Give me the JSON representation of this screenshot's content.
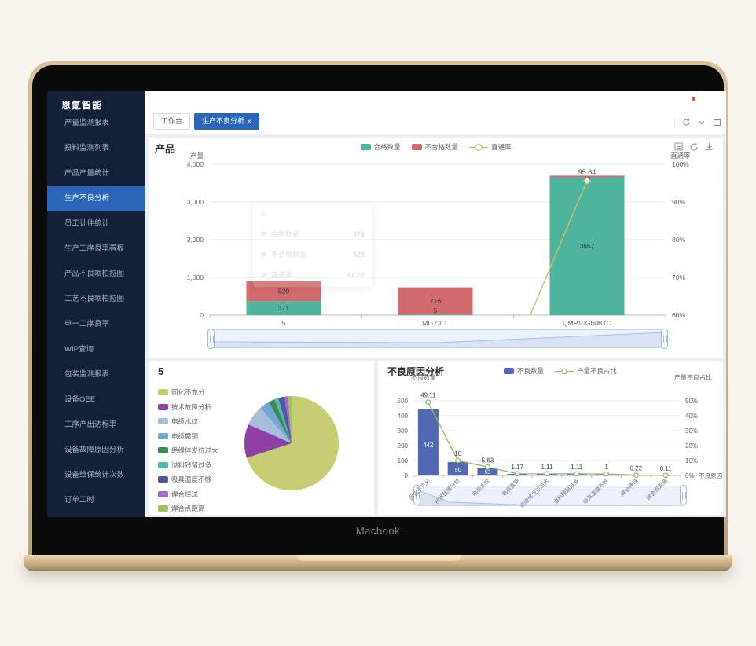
{
  "laptop": {
    "label": "Macbook"
  },
  "sidebar": {
    "brand": "恩氪智能",
    "items": [
      {
        "label": "产量监测报表",
        "active": false
      },
      {
        "label": "投料监测列表",
        "active": false
      },
      {
        "label": "产品产量统计",
        "active": false
      },
      {
        "label": "生产不良分析",
        "active": true
      },
      {
        "label": "员工计件统计",
        "active": false
      },
      {
        "label": "生产工序良率看板",
        "active": false
      },
      {
        "label": "产品不良项柏拉图",
        "active": false
      },
      {
        "label": "工艺不良项柏拉图",
        "active": false
      },
      {
        "label": "单一工序良率",
        "active": false
      },
      {
        "label": "WIP查询",
        "active": false
      },
      {
        "label": "包装监测报表",
        "active": false
      },
      {
        "label": "设备OEE",
        "active": false
      },
      {
        "label": "工序产出达标率",
        "active": false
      },
      {
        "label": "设备故障原因分析",
        "active": false
      },
      {
        "label": "设备维保统计次数",
        "active": false
      },
      {
        "label": "订单工时",
        "active": false
      }
    ]
  },
  "header": {
    "icons": [
      "notification-dot",
      "user-avatar"
    ],
    "notification_color": "#d9534f"
  },
  "tabbar": {
    "tabs": [
      {
        "label": "工作台",
        "active": false,
        "close": ""
      },
      {
        "label": "生产不良分析",
        "active": true,
        "close": "×"
      }
    ],
    "icons": [
      "refresh-icon",
      "chevron-down-icon",
      "fullscreen-icon"
    ]
  },
  "main_card": {
    "tools": [
      "list-icon",
      "reload-icon",
      "download-icon"
    ],
    "tooltip": {
      "title": "5",
      "rows": [
        {
          "name": "合格数量",
          "value": "371",
          "color": "#4db49e"
        },
        {
          "name": "不合格数量",
          "value": "529",
          "color": "#d16b70"
        },
        {
          "name": "直通率",
          "value": "41.22",
          "color": "#d6ba74"
        }
      ]
    }
  },
  "chart_data": [
    {
      "type": "bar",
      "title": "产品",
      "categories": [
        "5",
        "ML-ZJLL",
        "QMP10G60BTC"
      ],
      "series": [
        {
          "name": "合格数量",
          "type": "bar",
          "stack": "total",
          "color": "#4db49e",
          "values": [
            371,
            5,
            3657
          ]
        },
        {
          "name": "不合格数量",
          "type": "bar",
          "stack": "total",
          "color": "#d16b70",
          "values": [
            529,
            716,
            43
          ]
        },
        {
          "name": "直通率",
          "type": "line",
          "yaxis": "right",
          "color": "#d6ba74",
          "values": [
            41.22,
            0.69,
            95.64
          ]
        }
      ],
      "visible_line_label": "95.64",
      "ylabel_left": "产量",
      "ylabel_right": "直通率",
      "yticks_left": [
        "0",
        "1,000",
        "2,000",
        "3,000",
        "4,000"
      ],
      "yticks_right": [
        "60%",
        "70%",
        "80%",
        "90%",
        "100%"
      ],
      "ylim_left": [
        0,
        4000
      ],
      "ylim_right": [
        60,
        100
      ],
      "legend_position": "top-center",
      "grid": true,
      "has_datazoom_slider": true
    },
    {
      "type": "pie",
      "title": "5",
      "categories": [
        "固化不充分",
        "技术故障分析",
        "电缆水纹",
        "电缆露铜",
        "绝缘体发位过大",
        "溢料残留过多",
        "吸具温度不够",
        "焊合棒球",
        "焊合点距离"
      ],
      "values": [
        70,
        11.5,
        7,
        3.5,
        2,
        1.5,
        2,
        1.2,
        1.3
      ],
      "colors": [
        "#c6cd73",
        "#8e3fa6",
        "#a8bcdc",
        "#74a8d4",
        "#3e8b51",
        "#57b6af",
        "#4d57aa",
        "#a768c8",
        "#a0c164"
      ],
      "legend_position": "left"
    },
    {
      "type": "bar",
      "title": "不良原因分析",
      "categories": [
        "固化不充分",
        "技术故障分析",
        "电缆水纹",
        "电缆露铜",
        "绝缘体发位过大",
        "溢料残留过多",
        "吸具温度不够",
        "焊合棒球",
        "焊合点距离"
      ],
      "series": [
        {
          "name": "不良数量",
          "type": "bar",
          "color": "#5168b2",
          "values": [
            442,
            90,
            53,
            10,
            10,
            10,
            9,
            2,
            1
          ]
        },
        {
          "name": "产量不良占比",
          "type": "line",
          "yaxis": "right",
          "color": "#93b966",
          "values": [
            49.11,
            10,
            5.63,
            1.17,
            1.11,
            1.11,
            1,
            0.22,
            0.11
          ]
        }
      ],
      "bar_visible_labels": [
        "442",
        "90",
        "53"
      ],
      "ylabel_left": "不良数量",
      "ylabel_right": "产量不良占比",
      "xlabel": "不良原因",
      "yticks_left": [
        "0",
        "100",
        "200",
        "300",
        "400",
        "500"
      ],
      "yticks_right": [
        "0%",
        "10%",
        "20%",
        "30%",
        "40%",
        "50%"
      ],
      "ylim_left": [
        0,
        500
      ],
      "ylim_right": [
        0,
        50
      ],
      "legend_position": "top-center",
      "grid": true,
      "has_datazoom_slider": true
    }
  ]
}
